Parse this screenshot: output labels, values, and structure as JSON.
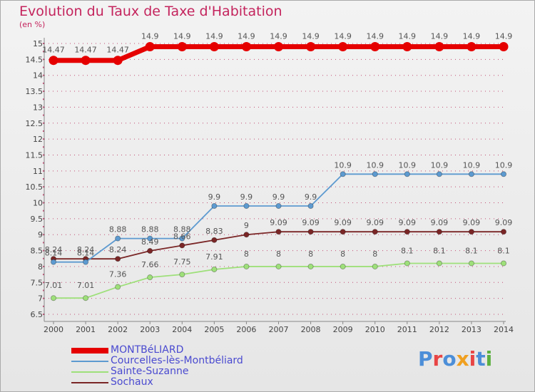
{
  "header": {
    "title": "Evolution du Taux de Taxe d'Habitation",
    "unit": "(en %)"
  },
  "logo": {
    "text": "Proxiti",
    "colors": [
      "#4c8ed8",
      "#e84545",
      "#4c8ed8",
      "#f0a020",
      "#e84545",
      "#4c8ed8",
      "#5cb040"
    ]
  },
  "colors": {
    "grid": "#c24d73",
    "axis": "#888888"
  },
  "chart_data": {
    "type": "line",
    "title": "Evolution du Taux de Taxe d'Habitation",
    "ylabel": "(en %)",
    "xlabel": "",
    "ylim": [
      6.5,
      15
    ],
    "yticks": [
      "6.5",
      "7",
      "7.5",
      "8",
      "8.5",
      "9",
      "9.5",
      "10",
      "10.5",
      "11",
      "11.5",
      "12",
      "12.5",
      "13",
      "13.5",
      "14",
      "14.5",
      "15"
    ],
    "x": [
      "2000",
      "2001",
      "2002",
      "2003",
      "2004",
      "2005",
      "2006",
      "2007",
      "2008",
      "2009",
      "2010",
      "2011",
      "2012",
      "2013",
      "2014"
    ],
    "series": [
      {
        "name": "MONTBéLIARD",
        "color": "#e50000",
        "values": [
          14.47,
          14.47,
          14.47,
          14.9,
          14.9,
          14.9,
          14.9,
          14.9,
          14.9,
          14.9,
          14.9,
          14.9,
          14.9,
          14.9,
          14.9
        ],
        "labels": [
          "14.47",
          "14.47",
          "14.47",
          "14.9",
          "14.9",
          "14.9",
          "14.9",
          "14.9",
          "14.9",
          "14.9",
          "14.9",
          "14.9",
          "14.9",
          "14.9",
          "14.9"
        ]
      },
      {
        "name": "Courcelles-lès-Montbéliard",
        "color": "#5d9ad0",
        "values": [
          8.14,
          8.14,
          8.88,
          8.88,
          8.88,
          9.9,
          9.9,
          9.9,
          9.9,
          10.9,
          10.9,
          10.9,
          10.9,
          10.9,
          10.9
        ],
        "labels": [
          "8.14",
          "8.14",
          "8.88",
          "8.88",
          "8.88",
          "9.9",
          "9.9",
          "9.9",
          "9.9",
          "10.9",
          "10.9",
          "10.9",
          "10.9",
          "10.9",
          "10.9"
        ]
      },
      {
        "name": "Sainte-Suzanne",
        "color": "#9ee07a",
        "values": [
          7.01,
          7.01,
          7.36,
          7.66,
          7.75,
          7.91,
          8,
          8,
          8,
          8,
          8,
          8.1,
          8.1,
          8.1,
          8.1
        ],
        "labels": [
          "7.01",
          "7.01",
          "7.36",
          "7.66",
          "7.75",
          "7.91",
          "8",
          "8",
          "8",
          "8",
          "8",
          "8.1",
          "8.1",
          "8.1",
          "8.1"
        ]
      },
      {
        "name": "Sochaux",
        "color": "#7a2626",
        "values": [
          8.24,
          8.24,
          8.24,
          8.49,
          8.66,
          8.83,
          9,
          9.09,
          9.09,
          9.09,
          9.09,
          9.09,
          9.09,
          9.09,
          9.09
        ],
        "labels": [
          "8.24",
          "8.24",
          "8.24",
          "8.49",
          "8.66",
          "8.83",
          "9",
          "9.09",
          "9.09",
          "9.09",
          "9.09",
          "9.09",
          "9.09",
          "9.09",
          "9.09"
        ]
      }
    ]
  }
}
